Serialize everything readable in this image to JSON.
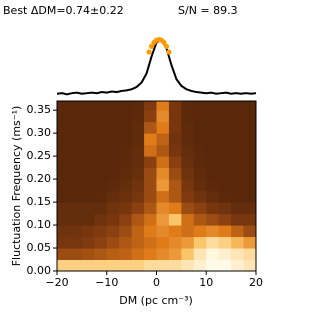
{
  "chart_data": [
    {
      "type": "line",
      "title": "Best ΔDM=0.74±0.22",
      "annotation": "S/N = 89.3",
      "x": [
        -20,
        -19,
        -18,
        -17,
        -16,
        -15,
        -14,
        -13,
        -12,
        -11,
        -10,
        -9,
        -8,
        -7,
        -6,
        -5,
        -4,
        -3,
        -2,
        -1,
        0,
        1,
        2,
        3,
        4,
        5,
        6,
        7,
        8,
        9,
        10,
        11,
        12,
        13,
        14,
        15,
        16,
        17,
        18,
        19,
        20
      ],
      "series": [
        {
          "color": "#000000",
          "values": [
            0.04,
            0.05,
            0.03,
            0.05,
            0.06,
            0.04,
            0.05,
            0.06,
            0.05,
            0.07,
            0.06,
            0.08,
            0.07,
            0.09,
            0.1,
            0.12,
            0.16,
            0.24,
            0.4,
            0.7,
            0.95,
            1.0,
            0.85,
            0.55,
            0.3,
            0.18,
            0.12,
            0.09,
            0.07,
            0.06,
            0.05,
            0.06,
            0.04,
            0.05,
            0.06,
            0.04,
            0.05,
            0.04,
            0.05,
            0.04,
            0.05
          ]
        }
      ],
      "points": {
        "color": "#ff9900",
        "x": [
          -1.5,
          -1,
          -0.5,
          0,
          0.5,
          1,
          1.5,
          2,
          2.5
        ],
        "values": [
          0.78,
          0.88,
          0.95,
          0.99,
          1.0,
          0.99,
          0.95,
          0.88,
          0.78
        ]
      },
      "xlim": [
        -20,
        20
      ],
      "ylim": [
        0,
        1.1
      ]
    },
    {
      "type": "heatmap",
      "xlabel": "DM (pc cm⁻³)",
      "ylabel": "Fluctuation Frequency (ms⁻¹)",
      "x": [
        -18.75,
        -16.25,
        -13.75,
        -11.25,
        -8.75,
        -6.25,
        -3.75,
        -1.25,
        1.25,
        3.75,
        6.25,
        8.75,
        11.25,
        13.75,
        16.25,
        18.75
      ],
      "y": [
        0.0125,
        0.0375,
        0.0625,
        0.0875,
        0.1125,
        0.1375,
        0.1625,
        0.1875,
        0.2125,
        0.2375,
        0.2625,
        0.2875,
        0.3125,
        0.3375,
        0.3625
      ],
      "z": [
        [
          0.8,
          0.8,
          0.8,
          0.8,
          0.8,
          0.8,
          0.8,
          0.85,
          0.85,
          0.85,
          0.9,
          0.95,
          1,
          1,
          0.95,
          0.9
        ],
        [
          0.3,
          0.3,
          0.32,
          0.35,
          0.38,
          0.4,
          0.45,
          0.5,
          0.55,
          0.6,
          0.75,
          0.9,
          0.98,
          0.95,
          0.9,
          0.85
        ],
        [
          0.2,
          0.2,
          0.22,
          0.25,
          0.3,
          0.35,
          0.4,
          0.45,
          0.5,
          0.55,
          0.6,
          0.75,
          0.85,
          0.8,
          0.7,
          0.6
        ],
        [
          0.18,
          0.18,
          0.2,
          0.22,
          0.25,
          0.3,
          0.4,
          0.5,
          0.55,
          0.5,
          0.45,
          0.5,
          0.55,
          0.5,
          0.4,
          0.3
        ],
        [
          0.15,
          0.15,
          0.15,
          0.18,
          0.2,
          0.25,
          0.35,
          0.45,
          0.6,
          0.75,
          0.45,
          0.35,
          0.3,
          0.25,
          0.2,
          0.2
        ],
        [
          0.15,
          0.15,
          0.15,
          0.15,
          0.18,
          0.2,
          0.25,
          0.35,
          0.55,
          0.5,
          0.3,
          0.25,
          0.2,
          0.18,
          0.15,
          0.15
        ],
        [
          0.12,
          0.12,
          0.12,
          0.13,
          0.15,
          0.17,
          0.2,
          0.3,
          0.45,
          0.35,
          0.22,
          0.18,
          0.15,
          0.13,
          0.12,
          0.12
        ],
        [
          0.12,
          0.12,
          0.12,
          0.12,
          0.13,
          0.15,
          0.18,
          0.3,
          0.6,
          0.35,
          0.2,
          0.15,
          0.13,
          0.12,
          0.12,
          0.12
        ],
        [
          0.12,
          0.12,
          0.12,
          0.12,
          0.12,
          0.14,
          0.16,
          0.3,
          0.55,
          0.3,
          0.18,
          0.14,
          0.12,
          0.12,
          0.12,
          0.12
        ],
        [
          0.12,
          0.12,
          0.12,
          0.12,
          0.12,
          0.13,
          0.15,
          0.25,
          0.45,
          0.25,
          0.16,
          0.13,
          0.12,
          0.12,
          0.12,
          0.12
        ],
        [
          0.12,
          0.12,
          0.12,
          0.12,
          0.12,
          0.13,
          0.15,
          0.45,
          0.35,
          0.2,
          0.15,
          0.13,
          0.12,
          0.12,
          0.12,
          0.12
        ],
        [
          0.12,
          0.12,
          0.12,
          0.12,
          0.12,
          0.12,
          0.14,
          0.5,
          0.4,
          0.18,
          0.14,
          0.12,
          0.12,
          0.12,
          0.12,
          0.12
        ],
        [
          0.12,
          0.12,
          0.12,
          0.12,
          0.12,
          0.12,
          0.14,
          0.35,
          0.5,
          0.2,
          0.14,
          0.12,
          0.12,
          0.12,
          0.12,
          0.12
        ],
        [
          0.12,
          0.12,
          0.12,
          0.12,
          0.12,
          0.12,
          0.13,
          0.25,
          0.55,
          0.2,
          0.13,
          0.12,
          0.12,
          0.12,
          0.12,
          0.12
        ],
        [
          0.12,
          0.12,
          0.12,
          0.12,
          0.12,
          0.12,
          0.13,
          0.22,
          0.5,
          0.2,
          0.13,
          0.12,
          0.12,
          0.12,
          0.12,
          0.12
        ]
      ],
      "colormap": [
        "#2b1005",
        "#8a4010",
        "#e07b1a",
        "#fbc56a",
        "#fffbe8"
      ],
      "xlim": [
        -20,
        20
      ],
      "ylim": [
        0,
        0.37
      ],
      "xticks": [
        {
          "value": -20,
          "label": "−20"
        },
        {
          "value": -10,
          "label": "−10"
        },
        0,
        10,
        20
      ],
      "yticks": [
        {
          "value": 0,
          "label": "0.00"
        },
        {
          "value": 0.05,
          "label": "0.05"
        },
        {
          "value": 0.1,
          "label": "0.10"
        },
        {
          "value": 0.15,
          "label": "0.15"
        },
        {
          "value": 0.2,
          "label": "0.20"
        },
        {
          "value": 0.25,
          "label": "0.25"
        },
        {
          "value": 0.3,
          "label": "0.30"
        },
        {
          "value": 0.35,
          "label": "0.35"
        }
      ]
    }
  ]
}
